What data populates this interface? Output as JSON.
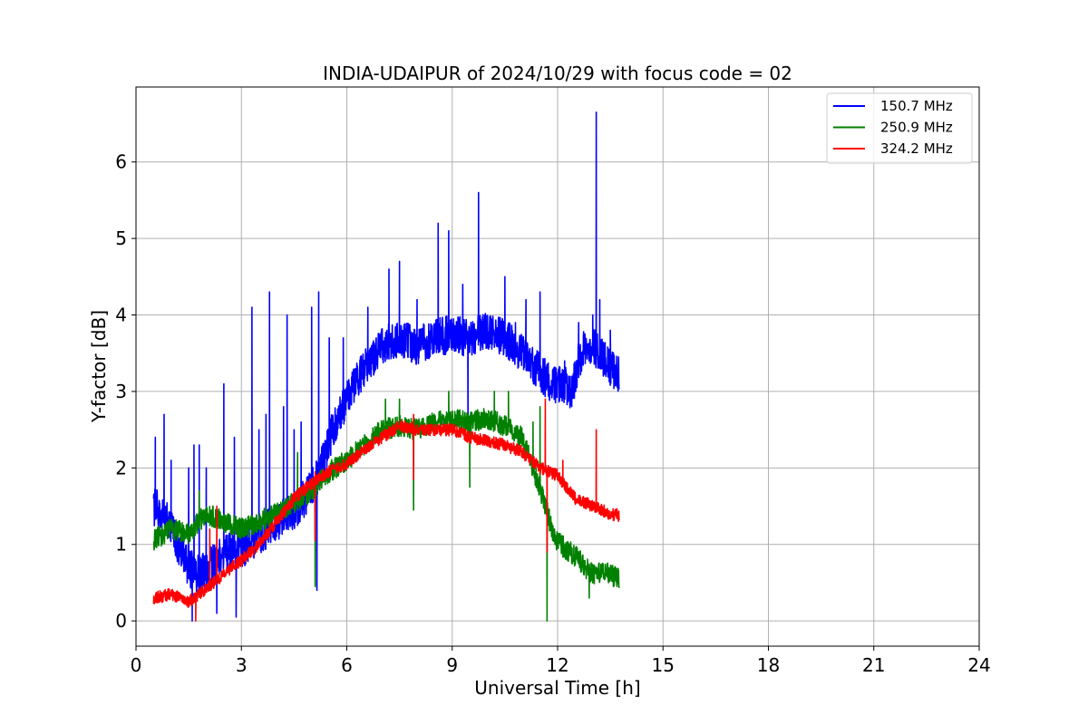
{
  "chart_data": {
    "type": "line",
    "title": "INDIA-UDAIPUR of 2024/10/29 with focus code = 02",
    "xlabel": "Universal Time [h]",
    "ylabel": "Y-factor [dB]",
    "xlim": [
      0,
      24
    ],
    "ylim": [
      -0.33,
      6.98
    ],
    "xticks": [
      0,
      3,
      6,
      9,
      12,
      15,
      18,
      21,
      24
    ],
    "yticks": [
      0,
      1,
      2,
      3,
      4,
      5,
      6
    ],
    "grid": true,
    "legend_position": "top-right",
    "series": [
      {
        "name": "150.7 MHz",
        "color": "#0000ff",
        "noise": 0.25,
        "x": [
          0.5,
          0.8,
          1.2,
          1.5,
          1.8,
          2.1,
          2.5,
          2.9,
          3.2,
          3.6,
          4.0,
          4.4,
          4.8,
          5.2,
          5.6,
          6.0,
          6.5,
          7.0,
          7.5,
          8.0,
          8.5,
          9.0,
          9.5,
          10.0,
          10.5,
          11.0,
          11.4,
          11.8,
          12.2,
          12.4,
          12.6,
          12.8,
          13.0,
          13.2,
          13.5,
          13.75
        ],
        "y": [
          1.5,
          1.4,
          1.0,
          0.7,
          0.6,
          0.7,
          0.9,
          0.9,
          1.0,
          1.15,
          1.3,
          1.4,
          1.6,
          1.9,
          2.5,
          2.9,
          3.3,
          3.6,
          3.7,
          3.6,
          3.7,
          3.75,
          3.7,
          3.8,
          3.7,
          3.5,
          3.3,
          3.1,
          3.1,
          3.0,
          3.4,
          3.6,
          3.6,
          3.5,
          3.3,
          3.2
        ],
        "spikes": [
          [
            0.55,
            2.4
          ],
          [
            0.8,
            2.7
          ],
          [
            1.0,
            2.1
          ],
          [
            1.5,
            2.0
          ],
          [
            1.65,
            2.3
          ],
          [
            1.8,
            2.3
          ],
          [
            2.0,
            2.0
          ],
          [
            2.5,
            3.1
          ],
          [
            2.8,
            2.4
          ],
          [
            3.3,
            4.1
          ],
          [
            3.5,
            2.5
          ],
          [
            3.7,
            2.7
          ],
          [
            3.8,
            4.3
          ],
          [
            4.2,
            2.8
          ],
          [
            4.3,
            4.0
          ],
          [
            4.5,
            2.5
          ],
          [
            4.7,
            2.6
          ],
          [
            5.0,
            4.1
          ],
          [
            5.2,
            4.3
          ],
          [
            5.5,
            3.7
          ],
          [
            5.9,
            3.7
          ],
          [
            6.6,
            4.1
          ],
          [
            7.2,
            4.6
          ],
          [
            7.5,
            4.7
          ],
          [
            8.0,
            4.2
          ],
          [
            8.6,
            5.2
          ],
          [
            8.9,
            5.1
          ],
          [
            9.3,
            4.4
          ],
          [
            9.75,
            5.6
          ],
          [
            10.5,
            4.5
          ],
          [
            10.8,
            3.9
          ],
          [
            11.1,
            4.2
          ],
          [
            11.5,
            4.3
          ],
          [
            12.2,
            3.4
          ],
          [
            12.6,
            3.9
          ],
          [
            13.0,
            4.0
          ],
          [
            13.1,
            6.65
          ],
          [
            13.2,
            4.2
          ],
          [
            13.5,
            3.8
          ]
        ],
        "dips": [
          [
            1.6,
            0.0
          ],
          [
            2.3,
            0.1
          ],
          [
            2.85,
            0.05
          ],
          [
            5.15,
            0.4
          ],
          [
            9.45,
            2.6
          ]
        ]
      },
      {
        "name": "250.9 MHz",
        "color": "#008000",
        "noise": 0.14,
        "x": [
          0.5,
          1.0,
          1.5,
          2.0,
          2.5,
          3.0,
          3.5,
          4.0,
          4.5,
          5.0,
          5.5,
          6.0,
          6.5,
          7.0,
          7.5,
          8.0,
          8.5,
          9.0,
          9.5,
          10.0,
          10.5,
          11.0,
          11.3,
          11.6,
          11.9,
          12.2,
          12.5,
          12.8,
          13.0,
          13.3,
          13.75
        ],
        "y": [
          1.05,
          1.2,
          1.15,
          1.4,
          1.3,
          1.2,
          1.3,
          1.4,
          1.55,
          1.7,
          1.95,
          2.1,
          2.3,
          2.5,
          2.55,
          2.5,
          2.6,
          2.65,
          2.6,
          2.65,
          2.55,
          2.4,
          2.0,
          1.6,
          1.1,
          0.95,
          0.85,
          0.7,
          0.6,
          0.65,
          0.55
        ],
        "spikes": [
          [
            1.8,
            1.7
          ],
          [
            4.6,
            2.2
          ],
          [
            7.1,
            2.9
          ],
          [
            7.5,
            2.9
          ],
          [
            8.9,
            3.0
          ],
          [
            10.2,
            3.0
          ],
          [
            10.6,
            3.0
          ],
          [
            11.3,
            2.6
          ],
          [
            11.5,
            2.8
          ]
        ],
        "dips": [
          [
            5.1,
            0.45
          ],
          [
            7.9,
            1.45
          ],
          [
            9.5,
            1.75
          ],
          [
            11.7,
            0.0
          ],
          [
            12.9,
            0.3
          ]
        ]
      },
      {
        "name": "324.2 MHz",
        "color": "#ff0000",
        "noise": 0.08,
        "x": [
          0.5,
          1.0,
          1.5,
          1.8,
          2.2,
          2.6,
          3.0,
          3.5,
          4.0,
          4.5,
          5.0,
          5.5,
          6.0,
          6.5,
          7.0,
          7.5,
          8.0,
          8.5,
          9.0,
          9.5,
          10.0,
          10.5,
          11.0,
          11.5,
          12.0,
          12.5,
          13.0,
          13.5,
          13.75
        ],
        "y": [
          0.3,
          0.35,
          0.25,
          0.35,
          0.5,
          0.65,
          0.8,
          1.0,
          1.3,
          1.6,
          1.8,
          1.95,
          2.05,
          2.25,
          2.4,
          2.55,
          2.5,
          2.5,
          2.5,
          2.4,
          2.35,
          2.3,
          2.2,
          2.0,
          1.9,
          1.6,
          1.5,
          1.4,
          1.38
        ],
        "spikes": [
          [
            2.1,
            1.2
          ],
          [
            2.3,
            1.5
          ],
          [
            5.1,
            1.95
          ],
          [
            7.9,
            2.7
          ],
          [
            11.65,
            2.9
          ],
          [
            12.15,
            2.1
          ],
          [
            13.1,
            2.5
          ]
        ],
        "dips": [
          [
            1.7,
            0.0
          ],
          [
            5.1,
            1.05
          ],
          [
            7.9,
            1.85
          ],
          [
            11.7,
            0.9
          ]
        ]
      }
    ]
  }
}
